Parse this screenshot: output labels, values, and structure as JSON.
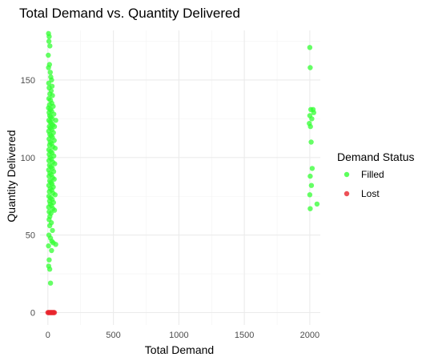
{
  "chart_data": {
    "type": "scatter",
    "title": "Total Demand vs. Quantity Delivered",
    "xlabel": "Total Demand",
    "ylabel": "Quantity Delivered",
    "xlim": [
      -60,
      2080
    ],
    "ylim": [
      -8,
      182
    ],
    "x_ticks": [
      0,
      500,
      1000,
      1500,
      2000
    ],
    "x_tick_labels": [
      "0",
      "500",
      "1000",
      "1500",
      "2000"
    ],
    "y_ticks": [
      0,
      50,
      100,
      150
    ],
    "y_tick_labels": [
      "0",
      "50",
      "100",
      "150"
    ],
    "grid": true,
    "legend": {
      "title": "Demand Status",
      "placement": "right",
      "entries": [
        {
          "label": "Filled",
          "color": "#33ff33"
        },
        {
          "label": "Lost",
          "color": "#e8262d"
        }
      ]
    },
    "series": [
      {
        "name": "Filled",
        "color": "#33ff33",
        "points": [
          [
            5,
            180
          ],
          [
            10,
            178
          ],
          [
            8,
            175
          ],
          [
            15,
            172
          ],
          [
            3,
            166
          ],
          [
            12,
            160
          ],
          [
            5,
            158
          ],
          [
            18,
            155
          ],
          [
            22,
            152
          ],
          [
            28,
            150
          ],
          [
            6,
            148
          ],
          [
            32,
            146
          ],
          [
            10,
            145
          ],
          [
            25,
            143
          ],
          [
            15,
            141
          ],
          [
            35,
            140
          ],
          [
            8,
            138
          ],
          [
            20,
            137
          ],
          [
            30,
            135
          ],
          [
            12,
            134
          ],
          [
            40,
            133
          ],
          [
            5,
            132
          ],
          [
            18,
            131
          ],
          [
            28,
            130
          ],
          [
            9,
            129
          ],
          [
            45,
            128
          ],
          [
            14,
            127
          ],
          [
            22,
            126
          ],
          [
            33,
            125
          ],
          [
            7,
            124
          ],
          [
            60,
            124
          ],
          [
            17,
            123
          ],
          [
            27,
            122
          ],
          [
            38,
            121
          ],
          [
            11,
            120
          ],
          [
            50,
            120
          ],
          [
            20,
            119
          ],
          [
            30,
            118
          ],
          [
            6,
            117
          ],
          [
            42,
            116
          ],
          [
            15,
            115
          ],
          [
            25,
            114
          ],
          [
            35,
            113
          ],
          [
            9,
            112
          ],
          [
            48,
            111
          ],
          [
            18,
            110
          ],
          [
            28,
            109
          ],
          [
            13,
            108
          ],
          [
            38,
            107
          ],
          [
            55,
            106
          ],
          [
            7,
            105
          ],
          [
            22,
            104
          ],
          [
            32,
            103
          ],
          [
            10,
            102
          ],
          [
            45,
            101
          ],
          [
            17,
            100
          ],
          [
            27,
            99
          ],
          [
            8,
            98
          ],
          [
            37,
            97
          ],
          [
            52,
            96
          ],
          [
            12,
            95
          ],
          [
            24,
            94
          ],
          [
            34,
            93
          ],
          [
            6,
            92
          ],
          [
            44,
            91
          ],
          [
            16,
            90
          ],
          [
            26,
            89
          ],
          [
            9,
            88
          ],
          [
            36,
            87
          ],
          [
            48,
            86
          ],
          [
            14,
            85
          ],
          [
            23,
            84
          ],
          [
            31,
            83
          ],
          [
            7,
            82
          ],
          [
            41,
            81
          ],
          [
            19,
            80
          ],
          [
            29,
            79
          ],
          [
            11,
            78
          ],
          [
            39,
            77
          ],
          [
            55,
            76
          ],
          [
            8,
            75
          ],
          [
            21,
            74
          ],
          [
            33,
            73
          ],
          [
            13,
            72
          ],
          [
            43,
            71
          ],
          [
            18,
            70
          ],
          [
            28,
            69
          ],
          [
            6,
            68
          ],
          [
            38,
            67
          ],
          [
            50,
            66
          ],
          [
            10,
            65
          ],
          [
            24,
            64
          ],
          [
            15,
            62
          ],
          [
            9,
            60
          ],
          [
            26,
            58
          ],
          [
            14,
            56
          ],
          [
            35,
            53
          ],
          [
            8,
            50
          ],
          [
            20,
            48
          ],
          [
            30,
            46
          ],
          [
            40,
            45
          ],
          [
            60,
            44
          ],
          [
            5,
            43
          ],
          [
            28,
            40
          ],
          [
            10,
            34
          ],
          [
            6,
            30
          ],
          [
            14,
            28
          ],
          [
            20,
            19
          ],
          [
            2000,
            171
          ],
          [
            2003,
            158
          ],
          [
            2008,
            131
          ],
          [
            2025,
            131
          ],
          [
            2030,
            129
          ],
          [
            2000,
            127
          ],
          [
            2015,
            125
          ],
          [
            1996,
            122
          ],
          [
            2005,
            120
          ],
          [
            2010,
            110
          ],
          [
            2018,
            93
          ],
          [
            2003,
            88
          ],
          [
            2012,
            82
          ],
          [
            2000,
            76
          ],
          [
            2055,
            70
          ],
          [
            2003,
            67
          ]
        ]
      },
      {
        "name": "Lost",
        "color": "#e8262d",
        "points": [
          [
            0,
            0
          ],
          [
            5,
            0
          ],
          [
            10,
            0
          ],
          [
            15,
            0
          ],
          [
            20,
            0
          ],
          [
            25,
            0
          ],
          [
            30,
            0
          ],
          [
            35,
            0
          ],
          [
            40,
            0
          ],
          [
            45,
            0
          ],
          [
            50,
            0
          ]
        ]
      }
    ]
  }
}
